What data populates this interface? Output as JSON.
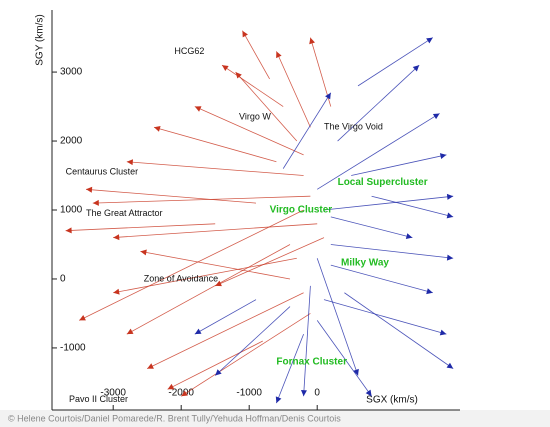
{
  "chart_data": {
    "type": "quiver",
    "x_label": "SGX (km/s)",
    "y_label": "SGY (km/s)",
    "xlim": [
      -3900,
      2100
    ],
    "ylim": [
      -1900,
      3900
    ],
    "xticks": [
      -3000,
      -2000,
      -1000,
      0
    ],
    "yticks": [
      -1000,
      0,
      1000,
      2000,
      3000
    ],
    "annotations": [
      {
        "text": "HCG62",
        "x": -2100,
        "y": 3300
      },
      {
        "text": "Virgo W",
        "x": -1150,
        "y": 2350
      },
      {
        "text": "The Virgo Void",
        "x": 100,
        "y": 2200
      },
      {
        "text": "Centaurus Cluster",
        "x": -3700,
        "y": 1550
      },
      {
        "text": "The Great Attractor",
        "x": -3400,
        "y": 950
      },
      {
        "text": "Zone of Avoidance",
        "x": -2550,
        "y": 0
      },
      {
        "text": "Pavo II Cluster",
        "x": -3650,
        "y": -1750
      }
    ],
    "green_annotations": [
      {
        "text": "Local Supercluster",
        "x": 300,
        "y": 1400
      },
      {
        "text": "Virgo Cluster",
        "x": -700,
        "y": 1000
      },
      {
        "text": "Milky Way",
        "x": 350,
        "y": 230
      },
      {
        "text": "Fornax Cluster",
        "x": -600,
        "y": -1200
      }
    ],
    "series": [
      {
        "color": "#c8341f",
        "x": [
          -200,
          -100,
          0,
          -300,
          -500,
          -200,
          -400,
          -300,
          -100,
          -600,
          -200,
          -100,
          -900,
          -700,
          200,
          -400,
          -200,
          100,
          -800,
          -1500
        ],
        "y": [
          1500,
          1200,
          800,
          2000,
          2500,
          1000,
          500,
          300,
          2200,
          1700,
          -200,
          -500,
          1100,
          2900,
          2500,
          0,
          1800,
          600,
          -900,
          800
        ],
        "x2": [
          -2800,
          -3300,
          -3000,
          -1200,
          -1400,
          -3500,
          -2800,
          -3000,
          -600,
          -2400,
          -2500,
          -2000,
          -3400,
          -1100,
          -100,
          -2600,
          -1800,
          -1500,
          -2200,
          -3700
        ],
        "y2": [
          1700,
          1100,
          600,
          3000,
          3100,
          -600,
          -800,
          -200,
          3300,
          2200,
          -1300,
          -1700,
          1300,
          3600,
          3500,
          400,
          2500,
          -100,
          -1600,
          700
        ]
      },
      {
        "color": "#1f2aa8",
        "x": [
          0,
          100,
          200,
          100,
          0,
          -200,
          300,
          500,
          200,
          -400,
          0,
          600,
          200,
          -500,
          400,
          -100,
          800,
          -900
        ],
        "y": [
          1300,
          1000,
          500,
          -300,
          -600,
          -800,
          2000,
          1500,
          200,
          -400,
          300,
          2800,
          900,
          1600,
          -200,
          -100,
          1200,
          -300
        ],
        "x2": [
          1800,
          2000,
          2000,
          1900,
          800,
          -600,
          1500,
          1900,
          1700,
          -1500,
          600,
          1700,
          1400,
          200,
          2000,
          -200,
          2000,
          -1800
        ],
        "y2": [
          2400,
          1200,
          300,
          -800,
          -1700,
          -1800,
          3100,
          1800,
          -200,
          -1400,
          -1400,
          3500,
          600,
          2700,
          -1300,
          -1700,
          900,
          -800
        ]
      }
    ]
  },
  "credit": "© Helene Courtois/Daniel Pomarede/R. Brent Tully/Yehuda Hoffman/Denis Courtois"
}
